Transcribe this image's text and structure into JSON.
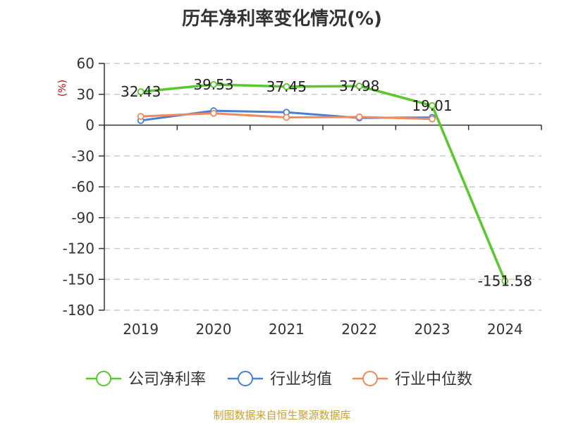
{
  "chart_data": {
    "type": "line",
    "title": "历年净利率变化情况(%)",
    "ylabel": "(%)",
    "xlabel": "",
    "categories": [
      "2019",
      "2020",
      "2021",
      "2022",
      "2023",
      "2024"
    ],
    "ylim": [
      -180,
      60
    ],
    "yticks": [
      60,
      30,
      0,
      -30,
      -60,
      -90,
      -120,
      -150,
      -180
    ],
    "grid": true,
    "legend_position": "bottom",
    "series": [
      {
        "name": "公司净利率",
        "color": "#5ac72d",
        "values": [
          32.43,
          39.53,
          37.45,
          37.98,
          19.01,
          -151.58
        ],
        "labels": [
          "32.43",
          "39.53",
          "37.45",
          "37.98",
          "19.01",
          "-151.58"
        ]
      },
      {
        "name": "行业均值",
        "color": "#4a7fd6",
        "values": [
          4.5,
          14.0,
          12.5,
          7.0,
          7.5,
          null
        ]
      },
      {
        "name": "行业中位数",
        "color": "#f08a5d",
        "values": [
          8.5,
          11.5,
          7.5,
          8.0,
          6.0,
          null
        ]
      }
    ]
  },
  "footer": "制图数据来自恒生聚源数据库"
}
